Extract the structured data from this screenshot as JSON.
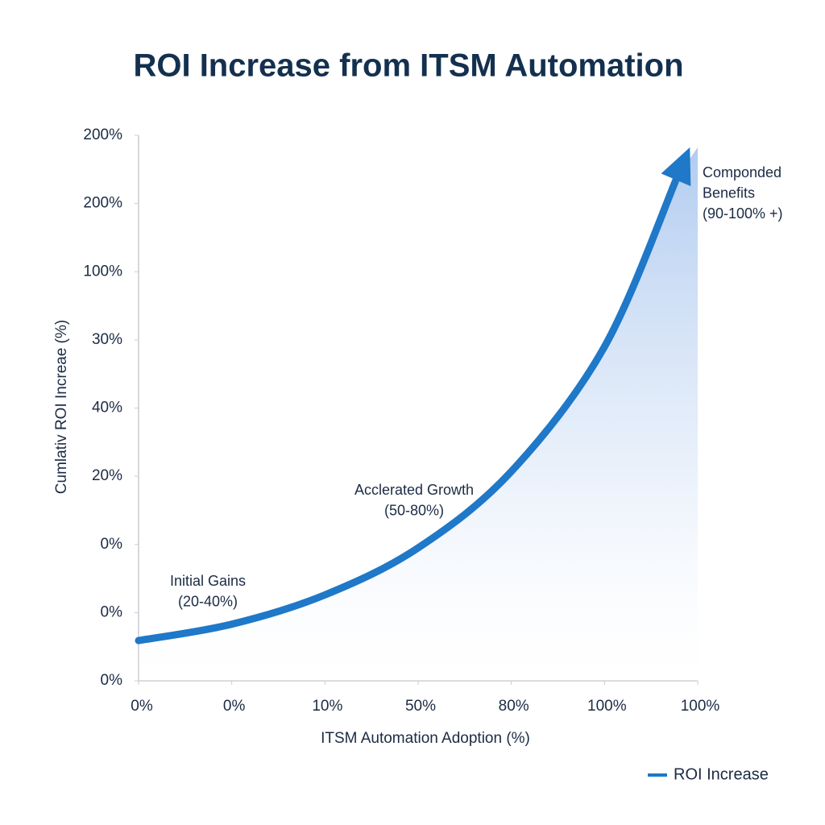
{
  "chart_data": {
    "type": "line",
    "title": "ROI Increase from ITSM Automation",
    "x_label": "ITSM Automation Adoption (%)",
    "y_label": "Cumlativ ROI Increae (%)",
    "x": [
      0,
      1,
      2,
      3,
      4,
      5,
      5.78
    ],
    "series": [
      {
        "name": "ROI Increase",
        "color": "#1f78c8",
        "values": [
          0.59,
          0.83,
          1.26,
          1.95,
          3.07,
          4.9,
          7.39
        ]
      }
    ],
    "xlim": [
      0,
      6
    ],
    "xticks": [
      {
        "value": 0,
        "label": "0%"
      },
      {
        "value": 1,
        "label": "0%"
      },
      {
        "value": 2,
        "label": "10%"
      },
      {
        "value": 3,
        "label": "50%"
      },
      {
        "value": 4,
        "label": "80%"
      },
      {
        "value": 5,
        "label": "100%"
      },
      {
        "value": 6,
        "label": "100%"
      }
    ],
    "ylim": [
      0,
      8
    ],
    "yticks": [
      {
        "value": 0,
        "label": "0%"
      },
      {
        "value": 1,
        "label": "0%"
      },
      {
        "value": 2,
        "label": "0%"
      },
      {
        "value": 3,
        "label": "20%"
      },
      {
        "value": 4,
        "label": "40%"
      },
      {
        "value": 5,
        "label": "30%"
      },
      {
        "value": 6,
        "label": "100%"
      },
      {
        "value": 7,
        "label": "200%"
      },
      {
        "value": 8,
        "label": "200%"
      }
    ],
    "annotations": [
      [
        "Initial Gains",
        "(20-40%)"
      ],
      [
        "Acclerated Growth",
        "(50-80%)"
      ],
      [
        "Componded",
        "Benefits",
        "(90-100% +)"
      ]
    ],
    "grid": false,
    "legend": "bottom-right"
  }
}
